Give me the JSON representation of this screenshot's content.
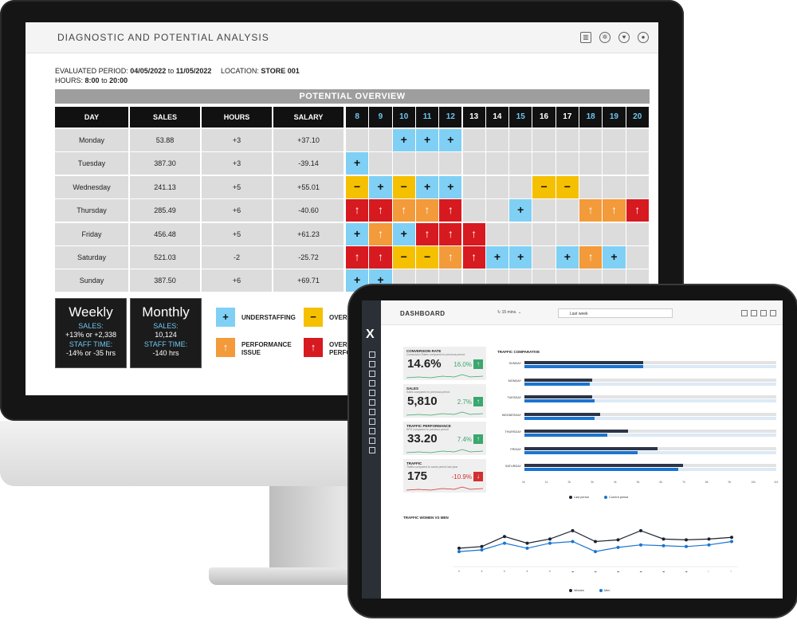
{
  "monitor": {
    "app_title": "DIAGNOSTIC AND POTENTIAL ANALYSIS",
    "header_icons": [
      "report-icon",
      "gear-icon",
      "heart-pulse-icon",
      "user-icon"
    ],
    "meta": {
      "period_label": "EVALUATED PERIOD:",
      "period_from": "04/05/2022",
      "period_to_word": "to",
      "period_to": "11/05/2022",
      "location_label": "LOCATION:",
      "location_value": "STORE 001",
      "hours_label": "HOURS:",
      "hours_from": "8:00",
      "hours_to": "20:00"
    },
    "overview_title": "POTENTIAL OVERVIEW",
    "columns": [
      "DAY",
      "SALES",
      "HOURS",
      "SALARY"
    ],
    "hours": [
      "8",
      "9",
      "10",
      "11",
      "12",
      "13",
      "14",
      "15",
      "16",
      "17",
      "18",
      "19",
      "20"
    ],
    "hours_highlight": [
      "8",
      "9",
      "10",
      "11",
      "12",
      "15",
      "18",
      "19",
      "20"
    ],
    "rows": [
      {
        "day": "Monday",
        "sales": "53.88",
        "hours": "+3",
        "salary": "+37.10",
        "marks": [
          "",
          "",
          "u",
          "u",
          "u",
          "",
          "",
          "",
          "",
          "",
          "",
          "",
          ""
        ]
      },
      {
        "day": "Tuesday",
        "sales": "387.30",
        "hours": "+3",
        "salary": "-39.14",
        "marks": [
          "u",
          "",
          "",
          "",
          "",
          "",
          "",
          "",
          "",
          "",
          "",
          "",
          ""
        ]
      },
      {
        "day": "Wednesday",
        "sales": "241.13",
        "hours": "+5",
        "salary": "+55.01",
        "marks": [
          "o",
          "u",
          "o",
          "u",
          "u",
          "",
          "",
          "",
          "o",
          "o",
          "",
          "",
          ""
        ]
      },
      {
        "day": "Thursday",
        "sales": "285.49",
        "hours": "+6",
        "salary": "-40.60",
        "marks": [
          "r",
          "r",
          "p",
          "p",
          "r",
          "",
          "",
          "u",
          "",
          "",
          "p",
          "p",
          "r"
        ]
      },
      {
        "day": "Friday",
        "sales": "456.48",
        "hours": "+5",
        "salary": "+61.23",
        "marks": [
          "u",
          "p",
          "u",
          "r",
          "r",
          "r",
          "",
          "",
          "",
          "",
          "",
          "",
          ""
        ]
      },
      {
        "day": "Saturday",
        "sales": "521.03",
        "hours": "-2",
        "salary": "-25.72",
        "marks": [
          "r",
          "r",
          "o",
          "o",
          "p",
          "r",
          "u",
          "u",
          "",
          "u",
          "p",
          "u",
          ""
        ]
      },
      {
        "day": "Sunday",
        "sales": "387.50",
        "hours": "+6",
        "salary": "+69.71",
        "marks": [
          "u",
          "u",
          "",
          "",
          "",
          "",
          "",
          "",
          "",
          "",
          "",
          "",
          ""
        ]
      }
    ],
    "symbols": {
      "u": "+",
      "o": "−",
      "p": "↑",
      "r": "↑"
    },
    "weekly": {
      "title": "Weekly",
      "sales_label": "SALES:",
      "sales_value": "+13% or +2,338",
      "staff_label": "STAFF TIME:",
      "staff_value": "-14% or -35 hrs"
    },
    "monthly": {
      "title": "Monthly",
      "sales_label": "SALES:",
      "sales_value": "10,124",
      "staff_label": "STAFF TIME:",
      "staff_value": "-140 hrs"
    },
    "legend": {
      "understaffing": "UNDERSTAFFING",
      "performance_line1": "PERFORMANCE",
      "performance_line2": "ISSUE",
      "overstaffing": "OVERS",
      "overstaffing_perf_line1": "OVERS",
      "overstaffing_perf_line2": "PERFO"
    },
    "colors": {
      "understaffing": "#7fd0f4",
      "overstaffing": "#f5c000",
      "performance": "#f39a3a",
      "critical": "#d71920"
    }
  },
  "tablet": {
    "dashboard_title": "DASHBOARD",
    "refresh_label": "15 mins.",
    "search_value": "Last week",
    "kpis": [
      {
        "title": "CONVERSION RATE",
        "subtitle": "Conversion Rates compared to previous period",
        "value": "14.6%",
        "pct": "16.0%",
        "trend": "up"
      },
      {
        "title": "SALES",
        "subtitle": "Sales compared to previous period",
        "value": "5,810",
        "pct": "2.7%",
        "trend": "up"
      },
      {
        "title": "TRAFFIC PERFORMANCE",
        "subtitle": "SPO compared to previous period",
        "value": "33.20",
        "pct": "7.4%",
        "trend": "up"
      },
      {
        "title": "TRAFFIC",
        "subtitle": "Traffic compared to same period last year",
        "value": "175",
        "pct": "-10.9%",
        "trend": "down"
      }
    ],
    "traffic_comparative": {
      "title": "TRAFFIC COMPARATIVE",
      "days": [
        "SUNDAY",
        "MONDAY",
        "TUESDAY",
        "WEDNESDAY",
        "THURSDAY",
        "FRIDAY",
        "SATURDAY"
      ],
      "last_period": [
        0.47,
        0.27,
        0.27,
        0.3,
        0.41,
        0.53,
        0.63
      ],
      "current_period": [
        0.47,
        0.26,
        0.28,
        0.28,
        0.33,
        0.45,
        0.61
      ],
      "x_ticks": [
        "0k",
        "1k",
        "2k",
        "3k",
        "4k",
        "5k",
        "6k",
        "7k",
        "8k",
        "9k",
        "10k",
        "11k"
      ],
      "legend_last": "Last period",
      "legend_current": "Current period"
    },
    "traffic_women_men": {
      "title": "TRAFFIC WOMEN VS MEN",
      "women": [
        22,
        24,
        36,
        28,
        33,
        43,
        30,
        32,
        43,
        33,
        32,
        33,
        35
      ],
      "men": [
        18,
        20,
        28,
        22,
        28,
        30,
        18,
        23,
        26,
        25,
        24,
        26,
        30
      ],
      "legend_women": "Women",
      "legend_men": "Men"
    }
  }
}
